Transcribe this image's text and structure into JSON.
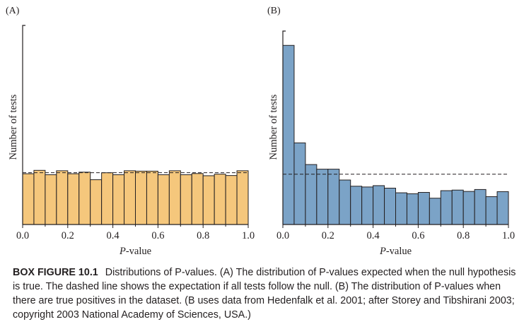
{
  "chart_data": [
    {
      "type": "bar",
      "panel_label": "(A)",
      "xlabel": "P-value",
      "xlabel_italic": "P",
      "xlabel_rest": "-value",
      "ylabel": "Number of tests",
      "xlim": [
        0,
        1
      ],
      "ylim": [
        0,
        100
      ],
      "xticks": [
        "0.0",
        "0.2",
        "0.4",
        "0.6",
        "0.8",
        "1.0"
      ],
      "bin_width": 0.05,
      "values": [
        25.5,
        27.2,
        25.0,
        27.0,
        25.5,
        26.3,
        22.5,
        26.0,
        25.0,
        27.0,
        26.8,
        26.8,
        25.0,
        27.0,
        25.0,
        25.6,
        24.5,
        25.3,
        24.6,
        27.0
      ],
      "expected_line": 26.0,
      "bar_color": "#f5c77c",
      "edge_color": "#231f20"
    },
    {
      "type": "bar",
      "panel_label": "(B)",
      "xlabel": "P-value",
      "xlabel_italic": "P",
      "xlabel_rest": "-value",
      "ylabel": "Number of tests",
      "xlim": [
        0,
        1
      ],
      "ylim": [
        0,
        100
      ],
      "xticks": [
        "0.0",
        "0.2",
        "0.4",
        "0.6",
        "0.8",
        "1.0"
      ],
      "bin_width": 0.05,
      "values": [
        92.6,
        42.2,
        31.0,
        28.6,
        28.6,
        23.0,
        19.8,
        19.4,
        20.1,
        18.8,
        16.4,
        15.9,
        16.6,
        13.6,
        17.5,
        17.8,
        17.1,
        18.1,
        14.4,
        17.0
      ],
      "expected_line": 26.0,
      "bar_color": "#7ba3c7",
      "edge_color": "#231f20"
    }
  ],
  "caption": {
    "title": "BOX FIGURE 10.1",
    "text": "Distributions of P-values. (A) The distribution of P-values expected when the null hypothesis is true. The dashed line shows the expectation if all tests follow the null. (B) The distribution of P-values when there are true positives in the dataset. (B uses data from Hedenfalk et al. 2001; after Storey and Tibshirani 2003; copyright 2003 National Academy of Sciences, USA.)"
  }
}
